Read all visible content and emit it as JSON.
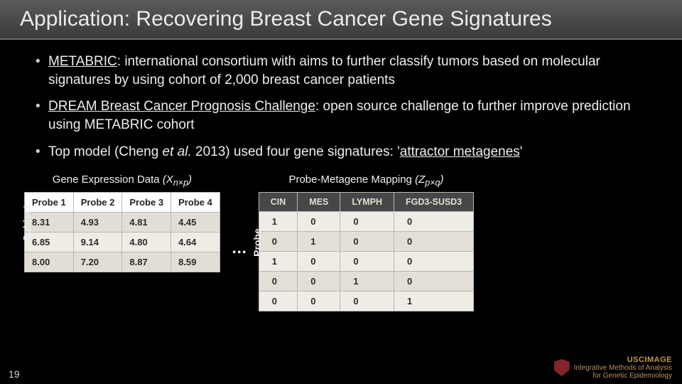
{
  "title": "Application: Recovering Breast Cancer Gene Signatures",
  "bullets": {
    "b1_lead": "METABRIC",
    "b1_rest": ": international consortium with aims to further classify tumors based on molecular signatures by using cohort of 2,000 breast cancer patients",
    "b2_lead": "DREAM Breast Cancer Prognosis Challenge",
    "b2_rest": ": open source challenge to further improve prediction using METABRIC cohort",
    "b3_pre": "Top model (Cheng ",
    "b3_em": "et al.",
    "b3_mid": " 2013) used four gene signatures: '",
    "b3_u": "attractor metagenes",
    "b3_post": "'"
  },
  "expr": {
    "title_main": "Gene Expression Data ",
    "title_paren": "(X",
    "title_sub": "n×p",
    "title_close": ")",
    "vlabel": "Subject",
    "headers": [
      "Probe 1",
      "Probe 2",
      "Probe 3",
      "Probe 4"
    ],
    "rows": [
      [
        "8.31",
        "4.93",
        "4.81",
        "4.45"
      ],
      [
        "6.85",
        "9.14",
        "4.80",
        "4.64"
      ],
      [
        "8.00",
        "7.20",
        "8.87",
        "8.59"
      ]
    ],
    "header_bg": "#ffffff",
    "row_odd_bg": "#e2ded6",
    "row_even_bg": "#efece6",
    "border_color": "#b8b8b8",
    "font_size": 13
  },
  "ellipsis": "…",
  "map": {
    "title_main": "Probe-Metagene Mapping ",
    "title_paren": "(Z",
    "title_sub": "p×q",
    "title_close": ")",
    "vlabel": "Probe",
    "headers": [
      "CIN",
      "MES",
      "LYMPH",
      "FGD3-SUSD3"
    ],
    "rows": [
      [
        "1",
        "0",
        "0",
        "0"
      ],
      [
        "0",
        "1",
        "0",
        "0"
      ],
      [
        "1",
        "0",
        "0",
        "0"
      ],
      [
        "0",
        "0",
        "1",
        "0"
      ],
      [
        "0",
        "0",
        "0",
        "1"
      ]
    ],
    "header_bg": "#474747",
    "header_fg": "#e0dcd0",
    "row_odd_bg": "#efece6",
    "row_even_bg": "#e3dfd6",
    "border_color": "#b8b8b8",
    "font_size": 13
  },
  "pagenum": "19",
  "footer": {
    "brand": "USCIMAGE",
    "line1": "Integrative Methods of Analysis",
    "line2": "for Genetic Epidemiology"
  },
  "colors": {
    "background": "#000000",
    "titlebar_top": "#5a5a5a",
    "titlebar_bottom": "#3b3b3b",
    "text": "#eeeeee",
    "accent_shield": "#82262c",
    "footer_text": "#b89060"
  },
  "typography": {
    "title_size": 30,
    "title_weight": 300,
    "bullet_size": 19,
    "table_title_size": 15
  }
}
